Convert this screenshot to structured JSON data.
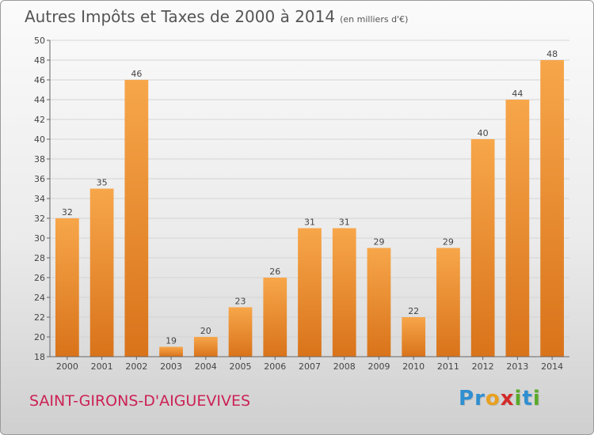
{
  "header": {
    "title": "Autres Impôts et Taxes de 2000 à 2014",
    "subtitle": "(en milliers d'€)"
  },
  "footer": {
    "location": "SAINT-GIRONS-D'AIGUEVIVES",
    "brand_letters": [
      {
        "ch": "P",
        "color": "#2f8fd0"
      },
      {
        "ch": "r",
        "color": "#2f8fd0"
      },
      {
        "ch": "o",
        "color": "#e8a020"
      },
      {
        "ch": "x",
        "color": "#d42a2a"
      },
      {
        "ch": "i",
        "color": "#5aaa2a"
      },
      {
        "ch": "t",
        "color": "#2f8fd0"
      },
      {
        "ch": "i",
        "color": "#5aaa2a"
      }
    ]
  },
  "chart_data": {
    "type": "bar",
    "categories": [
      "2000",
      "2001",
      "2002",
      "2003",
      "2004",
      "2005",
      "2006",
      "2007",
      "2008",
      "2009",
      "2010",
      "2011",
      "2012",
      "2013",
      "2014"
    ],
    "values": [
      32,
      35,
      46,
      19,
      20,
      23,
      26,
      31,
      31,
      29,
      22,
      29,
      40,
      44,
      48
    ],
    "ylim": [
      18,
      50
    ],
    "yticks": [
      18,
      20,
      22,
      24,
      26,
      28,
      30,
      32,
      34,
      36,
      38,
      40,
      42,
      44,
      46,
      48,
      50
    ],
    "grid": true,
    "bar_color_top": "#f7a64a",
    "bar_color_bottom": "#d9731a"
  }
}
